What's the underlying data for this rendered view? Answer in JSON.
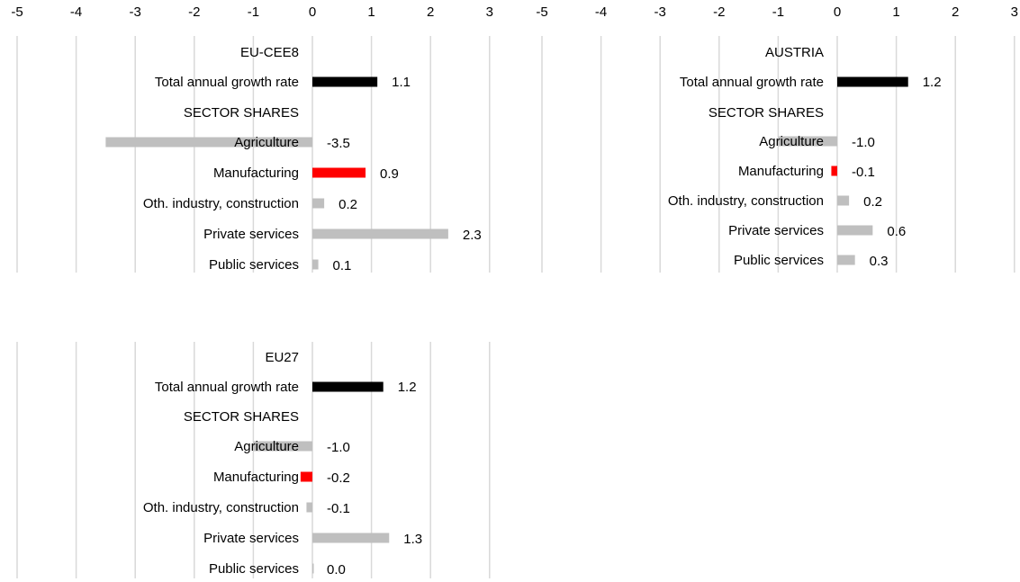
{
  "colors": {
    "total": "#000000",
    "manufacturing": "#ff0000",
    "other": "#bfbfbf",
    "grid": "#d9d9d9"
  },
  "chart_data": [
    {
      "type": "bar",
      "orientation": "horizontal",
      "region": "EU-CEE8",
      "xlim": [
        -5,
        3
      ],
      "xticks": [
        -5,
        -4,
        -3,
        -2,
        -1,
        0,
        1,
        2,
        3
      ],
      "section_header": "SECTOR SHARES",
      "categories": [
        "Total annual growth rate",
        "Agriculture",
        "Manufacturing",
        "Oth. industry, construction",
        "Private services",
        "Public services"
      ],
      "values": [
        1.1,
        -3.5,
        0.9,
        0.2,
        2.3,
        0.1
      ],
      "labels": [
        "1.1",
        "-3.5",
        "0.9",
        "0.2",
        "2.3",
        "0.1"
      ]
    },
    {
      "type": "bar",
      "orientation": "horizontal",
      "region": "AUSTRIA",
      "xlim": [
        -5,
        3
      ],
      "xticks": [
        -5,
        -4,
        -3,
        -2,
        -1,
        0,
        1,
        2,
        3
      ],
      "section_header": "SECTOR SHARES",
      "categories": [
        "Total annual growth rate",
        "Agriculture",
        "Manufacturing",
        "Oth. industry, construction",
        "Private services",
        "Public services"
      ],
      "values": [
        1.2,
        -1.0,
        -0.1,
        0.2,
        0.6,
        0.3
      ],
      "labels": [
        "1.2",
        "-1.0",
        "-0.1",
        "0.2",
        "0.6",
        "0.3"
      ]
    },
    {
      "type": "bar",
      "orientation": "horizontal",
      "region": "EU27",
      "xlim": [
        -5,
        3
      ],
      "xticks": [
        -5,
        -4,
        -3,
        -2,
        -1,
        0,
        1,
        2,
        3
      ],
      "section_header": "SECTOR SHARES",
      "categories": [
        "Total annual growth rate",
        "Agriculture",
        "Manufacturing",
        "Oth. industry, construction",
        "Private services",
        "Public services"
      ],
      "values": [
        1.2,
        -1.0,
        -0.2,
        -0.1,
        1.3,
        0.0
      ],
      "labels": [
        "1.2",
        "-1.0",
        "-0.2",
        "-0.1",
        "1.3",
        "0.0"
      ]
    }
  ]
}
